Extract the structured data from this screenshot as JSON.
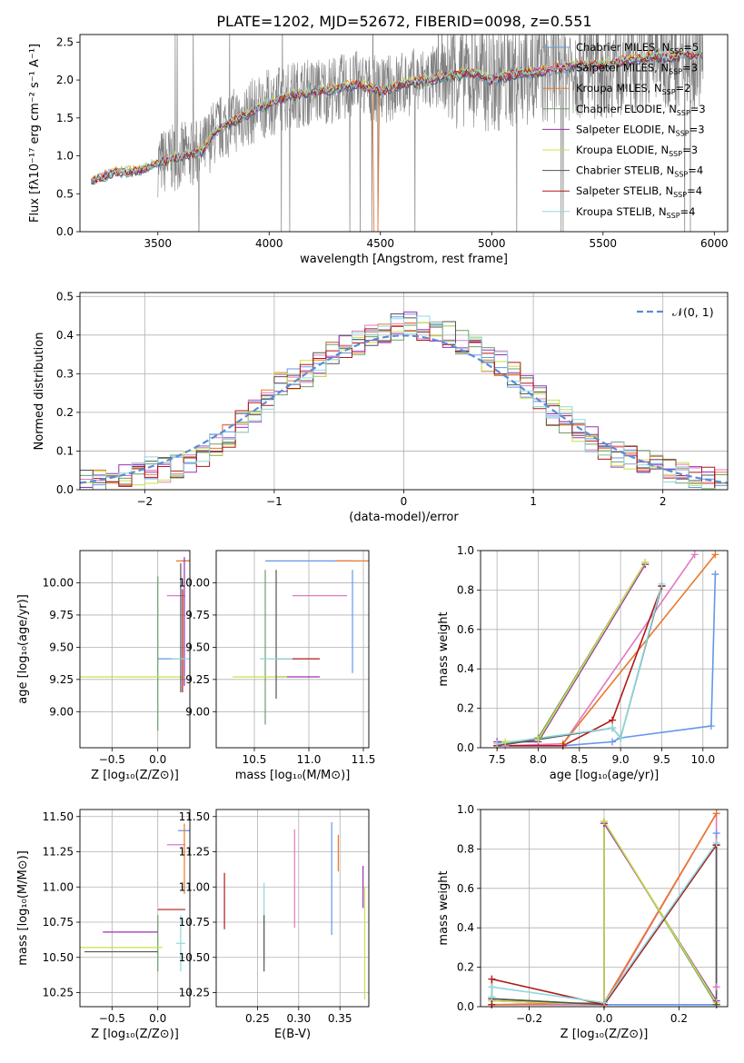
{
  "figure": {
    "title": "PLATE=1202, MJD=52672, FIBERID=0098, z=0.551"
  },
  "colors": {
    "chabrier_miles": "#6495ed",
    "salpeter_miles": "#e377c2",
    "kroupa_miles": "#e8782a",
    "chabrier_elodie": "#6aa06a",
    "salpeter_elodie": "#9b30b0",
    "kroupa_elodie": "#c8e04a",
    "chabrier_stelib": "#555555",
    "salpeter_stelib": "#b01818",
    "kroupa_stelib": "#8fd8dc",
    "data": "#808080",
    "normal_curve": "#5b8bd6"
  },
  "chart_data": [
    {
      "id": "spectrum",
      "type": "line",
      "xlabel": "wavelength [Angstrom, rest frame]",
      "ylabel": "Flux [fλ10⁻¹⁷ erg cm⁻² s⁻¹ A⁻¹]",
      "xlim": [
        3150,
        6060
      ],
      "ylim": [
        0,
        2.6
      ],
      "xticks": [
        3500,
        4000,
        4500,
        5000,
        5500,
        6000
      ],
      "yticks": [
        0.0,
        0.5,
        1.0,
        1.5,
        2.0,
        2.5
      ],
      "legend": [
        "Chabrier MILES, N_SSP=5",
        "Salpeter MILES, N_SSP=3",
        "Kroupa MILES, N_SSP=2",
        "Chabrier ELODIE, N_SSP=3",
        "Salpeter ELODIE, N_SSP=3",
        "Kroupa ELODIE, N_SSP=3",
        "Chabrier STELIB, N_SSP=4",
        "Salpeter STELIB, N_SSP=4",
        "Kroupa STELIB, N_SSP=4"
      ],
      "legend_loc": "right",
      "model_trend": {
        "x": [
          3200,
          3250,
          3300,
          3400,
          3500,
          3600,
          3700,
          3750,
          3800,
          3900,
          4000,
          4100,
          4200,
          4300,
          4400,
          4500,
          4600,
          4700,
          4800,
          4900,
          5000,
          5100,
          5200,
          5300,
          5400,
          5500,
          5600,
          5700,
          5800,
          5900,
          5950
        ],
        "y": [
          0.65,
          0.72,
          0.78,
          0.8,
          0.9,
          1.0,
          1.05,
          1.3,
          1.4,
          1.55,
          1.7,
          1.8,
          1.85,
          1.88,
          1.95,
          1.85,
          1.95,
          2.0,
          2.05,
          2.1,
          2.0,
          2.08,
          2.1,
          2.15,
          2.2,
          2.2,
          2.25,
          2.3,
          2.3,
          2.35,
          2.35
        ]
      },
      "data_range": [
        3500,
        5950
      ]
    },
    {
      "id": "residuals",
      "type": "line",
      "xlabel": "(data-model)/error",
      "ylabel": "Normed distribution",
      "xlim": [
        -2.5,
        2.5
      ],
      "ylim": [
        0,
        0.51
      ],
      "xticks": [
        -2,
        -1,
        0,
        1,
        2
      ],
      "yticks": [
        0.0,
        0.1,
        0.2,
        0.3,
        0.4,
        0.5
      ],
      "legend": [
        "𝒩(0, 1)"
      ],
      "legend_loc": "upper right",
      "bin_width": 0.1,
      "hist_centers": [
        -2.45,
        -2.35,
        -2.25,
        -2.15,
        -2.05,
        -1.95,
        -1.85,
        -1.75,
        -1.65,
        -1.55,
        -1.45,
        -1.35,
        -1.25,
        -1.15,
        -1.05,
        -0.95,
        -0.85,
        -0.75,
        -0.65,
        -0.55,
        -0.45,
        -0.35,
        -0.25,
        -0.15,
        -0.05,
        0.05,
        0.15,
        0.25,
        0.35,
        0.45,
        0.55,
        0.65,
        0.75,
        0.85,
        0.95,
        1.05,
        1.15,
        1.25,
        1.35,
        1.45,
        1.55,
        1.65,
        1.75,
        1.85,
        1.95,
        2.05,
        2.15,
        2.25,
        2.35,
        2.45
      ],
      "hist_base": [
        0.02,
        0.02,
        0.03,
        0.03,
        0.04,
        0.05,
        0.05,
        0.06,
        0.07,
        0.09,
        0.11,
        0.14,
        0.17,
        0.2,
        0.24,
        0.28,
        0.29,
        0.3,
        0.32,
        0.35,
        0.37,
        0.38,
        0.4,
        0.41,
        0.42,
        0.43,
        0.42,
        0.41,
        0.4,
        0.38,
        0.37,
        0.34,
        0.33,
        0.3,
        0.27,
        0.24,
        0.2,
        0.18,
        0.15,
        0.13,
        0.11,
        0.09,
        0.08,
        0.07,
        0.06,
        0.05,
        0.04,
        0.04,
        0.03,
        0.03
      ]
    },
    {
      "id": "age_vs_Z",
      "type": "scatter",
      "xlabel": "Z [log₁₀(Z/Z⊙)]",
      "ylabel": "age  [log₁₀(age/yr)]",
      "xlim": [
        -0.85,
        0.35
      ],
      "ylim": [
        8.72,
        10.25
      ],
      "xticks": [
        -0.5,
        0.0
      ],
      "yticks": [
        9.0,
        9.25,
        9.5,
        9.75,
        10.0
      ],
      "points": [
        {
          "s": "chabrier_miles",
          "x": 0.15,
          "y": 9.41,
          "xerr": 0.15,
          "yerr": 0.0
        },
        {
          "s": "chabrier_miles",
          "x": 0.3,
          "y": 10.17,
          "xerr": 0.05,
          "yerr": 0.0
        },
        {
          "s": "salpeter_miles",
          "x": 0.2,
          "y": 9.9,
          "xerr": 0.1,
          "yerr": 0.0
        },
        {
          "s": "kroupa_miles",
          "x": 0.28,
          "y": 10.17,
          "xerr": 0.08,
          "yerr": 0.0
        },
        {
          "s": "chabrier_elodie",
          "x": 0.0,
          "y": 9.45,
          "xerr": 0.0,
          "yerr": 0.6
        },
        {
          "s": "salpeter_elodie",
          "x": 0.29,
          "y": 9.7,
          "xerr": 0.0,
          "yerr": 0.5
        },
        {
          "s": "kroupa_elodie",
          "x": -0.3,
          "y": 9.27,
          "xerr": 0.6,
          "yerr": 0.0
        },
        {
          "s": "chabrier_stelib",
          "x": 0.25,
          "y": 9.65,
          "xerr": 0.0,
          "yerr": 0.5
        },
        {
          "s": "salpeter_stelib",
          "x": 0.27,
          "y": 9.55,
          "xerr": 0.0,
          "yerr": 0.4
        },
        {
          "s": "kroupa_stelib",
          "x": 0.25,
          "y": 9.41,
          "xerr": 0.1,
          "yerr": 0.0
        }
      ]
    },
    {
      "id": "age_vs_mass",
      "type": "scatter",
      "xlabel": "mass [log₁₀(M/M⊙)]",
      "ylabel": "",
      "xlim": [
        10.15,
        11.55
      ],
      "ylim": [
        8.72,
        10.25
      ],
      "xticks": [
        10.5,
        11.0,
        11.5
      ],
      "yticks": [
        9.0,
        9.25,
        9.5,
        9.75,
        10.0
      ],
      "points": [
        {
          "s": "chabrier_miles",
          "x": 11.4,
          "y": 9.7,
          "xerr": 0.0,
          "yerr": 0.4
        },
        {
          "s": "chabrier_miles",
          "x": 11.0,
          "y": 10.17,
          "xerr": 0.4,
          "yerr": 0.0
        },
        {
          "s": "salpeter_miles",
          "x": 11.1,
          "y": 9.9,
          "xerr": 0.25,
          "yerr": 0.0
        },
        {
          "s": "kroupa_miles",
          "x": 11.4,
          "y": 10.17,
          "xerr": 0.15,
          "yerr": 0.0
        },
        {
          "s": "chabrier_elodie",
          "x": 10.6,
          "y": 9.5,
          "xerr": 0.0,
          "yerr": 0.6
        },
        {
          "s": "salpeter_elodie",
          "x": 10.9,
          "y": 9.27,
          "xerr": 0.2,
          "yerr": 0.0
        },
        {
          "s": "kroupa_elodie",
          "x": 10.55,
          "y": 9.27,
          "xerr": 0.25,
          "yerr": 0.0
        },
        {
          "s": "chabrier_stelib",
          "x": 10.7,
          "y": 9.6,
          "xerr": 0.0,
          "yerr": 0.5
        },
        {
          "s": "salpeter_stelib",
          "x": 10.9,
          "y": 9.41,
          "xerr": 0.2,
          "yerr": 0.0
        },
        {
          "s": "kroupa_stelib",
          "x": 10.7,
          "y": 9.41,
          "xerr": 0.15,
          "yerr": 0.0
        }
      ]
    },
    {
      "id": "weight_vs_age",
      "type": "line",
      "xlabel": "age  [log₁₀(age/yr)]",
      "ylabel": "mass weight",
      "xlim": [
        7.3,
        10.3
      ],
      "ylim": [
        0,
        1
      ],
      "xticks": [
        7.5,
        8.0,
        8.5,
        9.0,
        9.5,
        10.0
      ],
      "yticks": [
        0.0,
        0.2,
        0.4,
        0.6,
        0.8,
        1.0
      ],
      "series": [
        {
          "s": "chabrier_miles",
          "x": [
            7.5,
            8.3,
            8.9,
            9.0,
            10.1,
            10.15
          ],
          "y": [
            0.01,
            0.01,
            0.03,
            0.05,
            0.11,
            0.88
          ]
        },
        {
          "s": "salpeter_miles",
          "x": [
            7.6,
            8.3,
            9.9
          ],
          "y": [
            0.01,
            0.02,
            0.98
          ]
        },
        {
          "s": "kroupa_miles",
          "x": [
            8.3,
            10.15
          ],
          "y": [
            0.02,
            0.98
          ]
        },
        {
          "s": "chabrier_elodie",
          "x": [
            7.5,
            8.0,
            9.3
          ],
          "y": [
            0.01,
            0.05,
            0.94
          ]
        },
        {
          "s": "salpeter_elodie",
          "x": [
            7.5,
            8.0,
            9.3
          ],
          "y": [
            0.03,
            0.03,
            0.93
          ]
        },
        {
          "s": "kroupa_elodie",
          "x": [
            7.6,
            8.0,
            9.3
          ],
          "y": [
            0.03,
            0.04,
            0.94
          ]
        },
        {
          "s": "chabrier_stelib",
          "x": [
            7.5,
            8.9,
            9.0,
            9.5
          ],
          "y": [
            0.01,
            0.1,
            0.05,
            0.82
          ]
        },
        {
          "s": "salpeter_stelib",
          "x": [
            7.5,
            8.3,
            8.9,
            9.5
          ],
          "y": [
            0.01,
            0.01,
            0.14,
            0.82
          ]
        },
        {
          "s": "kroupa_stelib",
          "x": [
            7.5,
            8.9,
            9.0,
            9.5
          ],
          "y": [
            0.02,
            0.1,
            0.05,
            0.83
          ]
        }
      ]
    },
    {
      "id": "mass_vs_Z",
      "type": "scatter",
      "xlabel": "Z [log₁₀(Z/Z⊙)]",
      "ylabel": "mass [log₁₀(M/M⊙)]",
      "xlim": [
        -0.85,
        0.35
      ],
      "ylim": [
        10.15,
        11.55
      ],
      "xticks": [
        -0.5,
        0.0
      ],
      "yticks": [
        10.25,
        10.5,
        10.75,
        11.0,
        11.25,
        11.5
      ],
      "points": [
        {
          "s": "chabrier_miles",
          "x": 0.3,
          "y": 11.4,
          "xerr": 0.08,
          "yerr": 0.0
        },
        {
          "s": "salpeter_miles",
          "x": 0.2,
          "y": 11.3,
          "xerr": 0.1,
          "yerr": 0.0
        },
        {
          "s": "kroupa_miles",
          "x": 0.29,
          "y": 11.2,
          "xerr": 0.0,
          "yerr": 0.25
        },
        {
          "s": "chabrier_elodie",
          "x": 0.0,
          "y": 10.6,
          "xerr": 0.0,
          "yerr": 0.2
        },
        {
          "s": "salpeter_elodie",
          "x": -0.3,
          "y": 10.68,
          "xerr": 0.3,
          "yerr": 0.0
        },
        {
          "s": "kroupa_elodie",
          "x": -0.4,
          "y": 10.57,
          "xerr": 0.45,
          "yerr": 0.0
        },
        {
          "s": "chabrier_stelib",
          "x": -0.4,
          "y": 10.54,
          "xerr": 0.4,
          "yerr": 0.0
        },
        {
          "s": "salpeter_stelib",
          "x": 0.15,
          "y": 10.84,
          "xerr": 0.15,
          "yerr": 0.0
        },
        {
          "s": "kroupa_stelib",
          "x": 0.25,
          "y": 10.6,
          "xerr": 0.05,
          "yerr": 0.2
        }
      ]
    },
    {
      "id": "mass_vs_ebv",
      "type": "scatter",
      "xlabel": "E(B-V)",
      "ylabel": "",
      "xlim": [
        0.2,
        0.385
      ],
      "ylim": [
        10.15,
        11.55
      ],
      "xticks": [
        0.25,
        0.3,
        0.35
      ],
      "yticks": [
        10.25,
        10.5,
        10.75,
        11.0,
        11.25,
        11.5
      ],
      "points": [
        {
          "s": "salpeter_stelib",
          "x": 0.21,
          "y": 10.9,
          "yerr": 0.2
        },
        {
          "s": "kroupa_stelib",
          "x": 0.258,
          "y": 10.75,
          "yerr": 0.28
        },
        {
          "s": "chabrier_stelib",
          "x": 0.258,
          "y": 10.6,
          "yerr": 0.2
        },
        {
          "s": "salpeter_miles",
          "x": 0.295,
          "y": 11.06,
          "yerr": 0.35
        },
        {
          "s": "chabrier_miles",
          "x": 0.34,
          "y": 11.06,
          "yerr": 0.4
        },
        {
          "s": "kroupa_miles",
          "x": 0.348,
          "y": 11.24,
          "yerr": 0.13
        },
        {
          "s": "salpeter_elodie",
          "x": 0.378,
          "y": 11.0,
          "yerr": 0.15
        },
        {
          "s": "kroupa_elodie",
          "x": 0.38,
          "y": 10.6,
          "yerr": 0.4
        }
      ]
    },
    {
      "id": "weight_vs_Z",
      "type": "line",
      "xlabel": "Z [log₁₀(Z/Z⊙)]",
      "ylabel": "mass weight",
      "xlim": [
        -0.33,
        0.33
      ],
      "ylim": [
        0,
        1
      ],
      "xticks": [
        -0.2,
        0.0,
        0.2
      ],
      "yticks": [
        0.0,
        0.2,
        0.4,
        0.6,
        0.8,
        1.0
      ],
      "series": [
        {
          "s": "chabrier_miles",
          "x": [
            -0.3,
            0.0,
            0.3,
            0.3
          ],
          "y": [
            0.01,
            0.01,
            0.01,
            0.88
          ]
        },
        {
          "s": "salpeter_miles",
          "x": [
            -0.3,
            0.0,
            0.3,
            0.3
          ],
          "y": [
            0.01,
            0.01,
            0.98,
            0.1
          ]
        },
        {
          "s": "kroupa_miles",
          "x": [
            -0.3,
            0.0,
            0.3
          ],
          "y": [
            0.01,
            0.02,
            0.98
          ]
        },
        {
          "s": "chabrier_elodie",
          "x": [
            -0.3,
            0.0,
            0.0,
            0.3
          ],
          "y": [
            0.04,
            0.01,
            0.94,
            0.01
          ]
        },
        {
          "s": "salpeter_elodie",
          "x": [
            -0.3,
            0.0,
            0.0,
            0.3
          ],
          "y": [
            0.03,
            0.01,
            0.93,
            0.03
          ]
        },
        {
          "s": "kroupa_elodie",
          "x": [
            -0.3,
            0.0,
            0.0,
            0.3
          ],
          "y": [
            0.03,
            0.01,
            0.94,
            0.02
          ]
        },
        {
          "s": "chabrier_stelib",
          "x": [
            -0.3,
            0.0,
            0.3,
            0.3
          ],
          "y": [
            0.04,
            0.01,
            0.82,
            0.01
          ]
        },
        {
          "s": "salpeter_stelib",
          "x": [
            -0.3,
            -0.3,
            0.0,
            0.3
          ],
          "y": [
            0.01,
            0.14,
            0.01,
            0.82
          ]
        },
        {
          "s": "kroupa_stelib",
          "x": [
            -0.3,
            -0.3,
            0.0,
            0.3
          ],
          "y": [
            0.05,
            0.1,
            0.02,
            0.83
          ]
        }
      ]
    }
  ]
}
